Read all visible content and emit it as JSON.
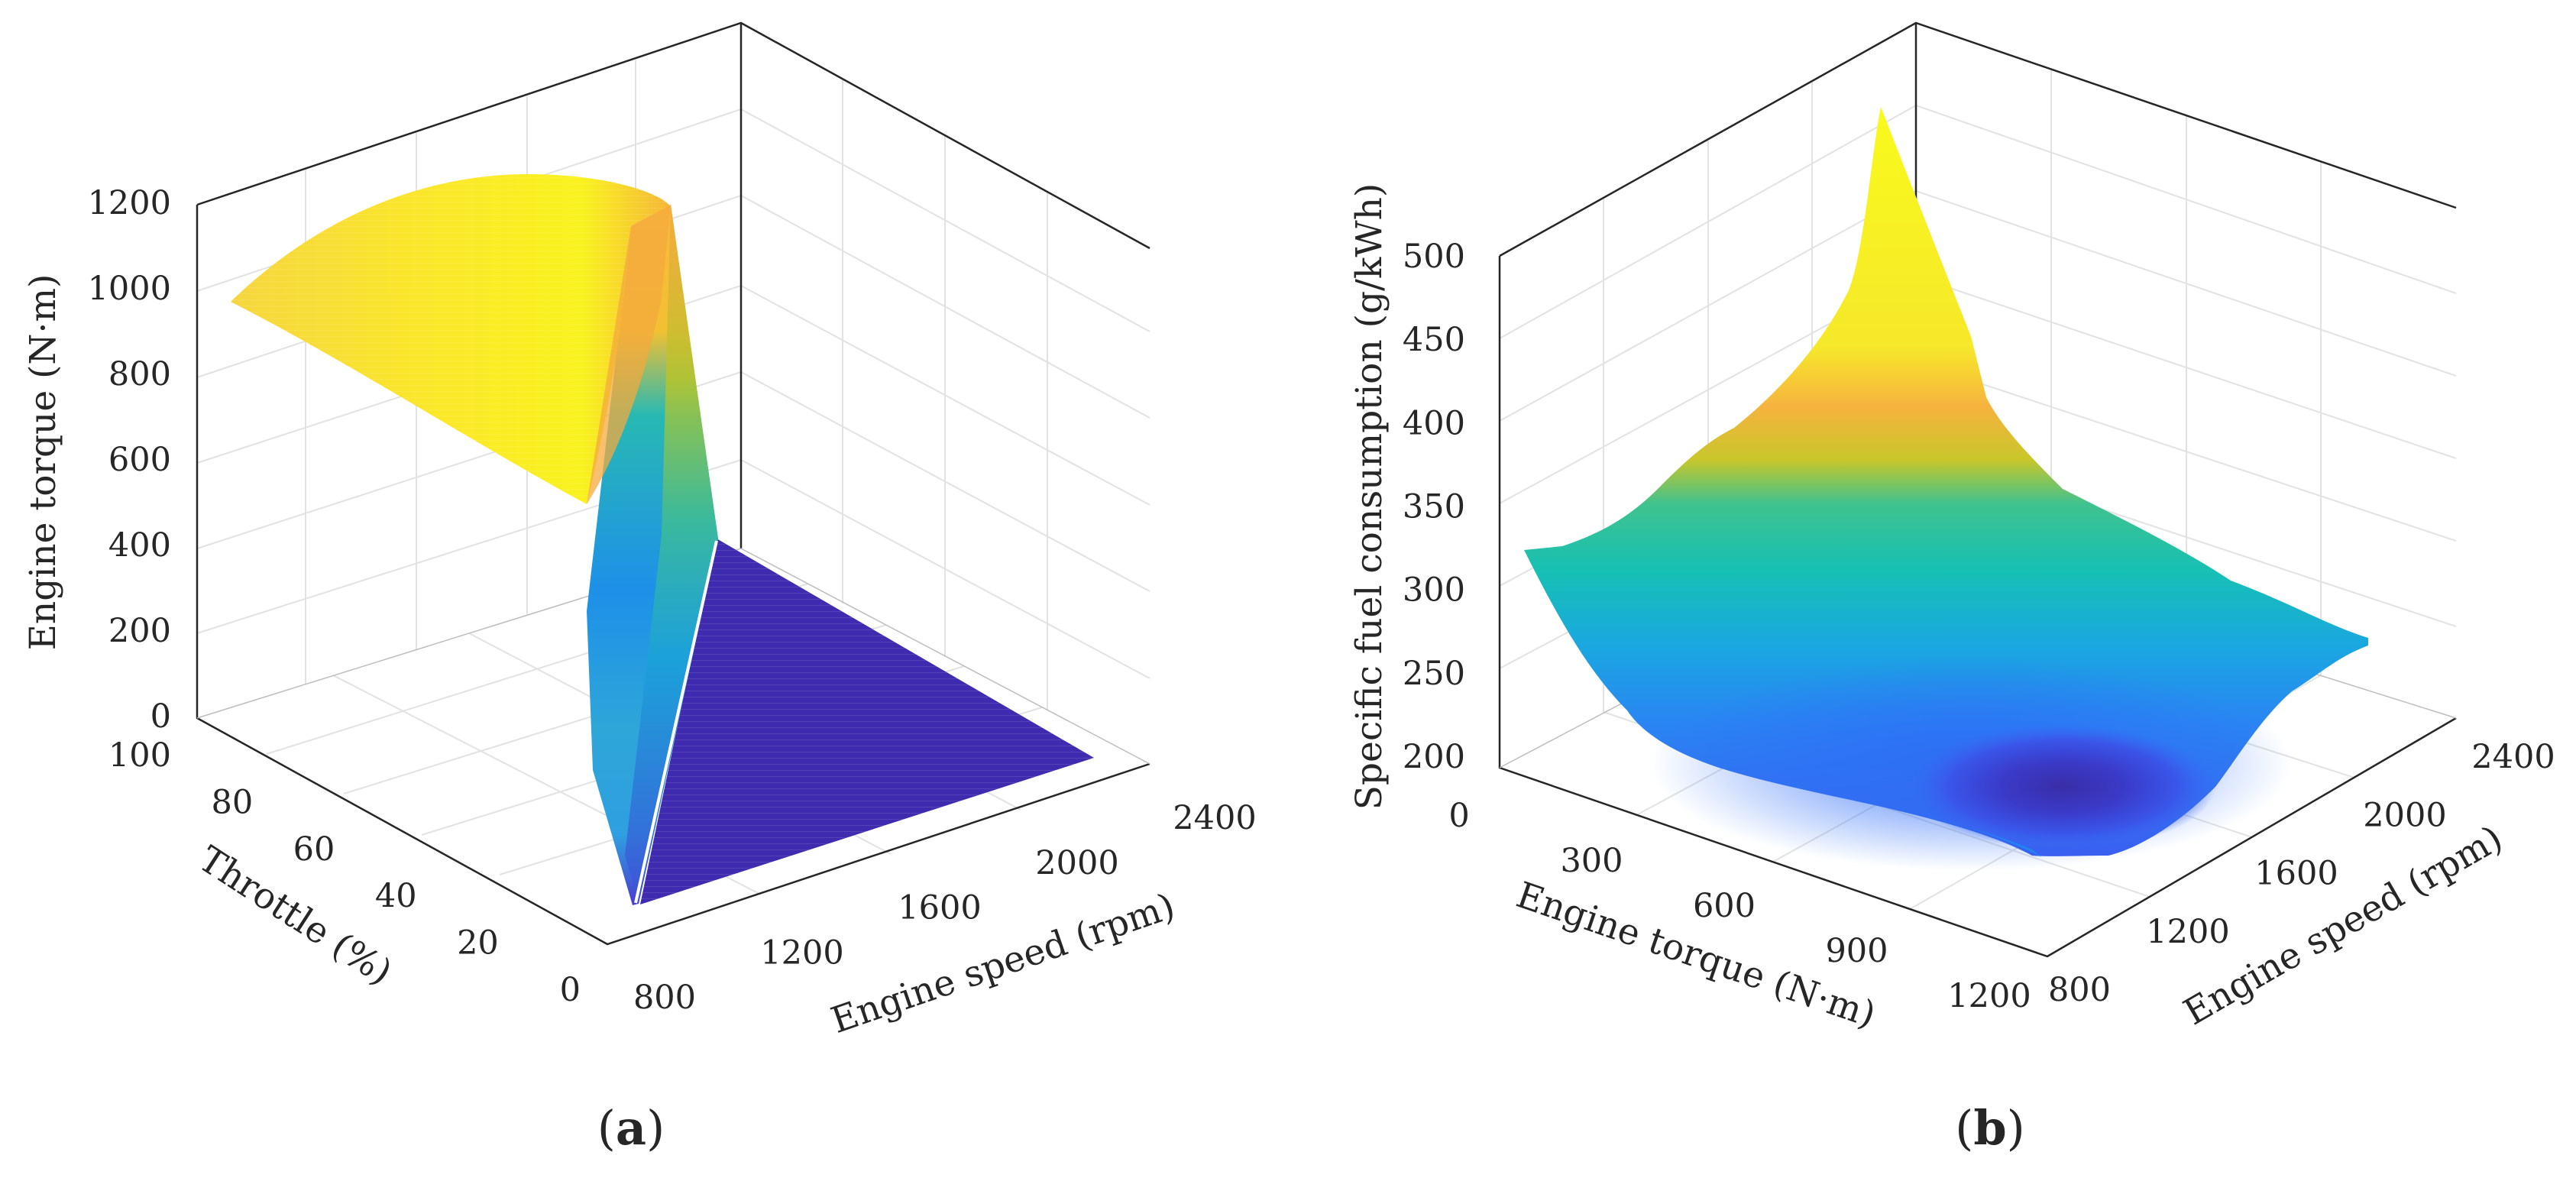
{
  "chart_data": [
    {
      "panel": "(a)",
      "type": "surface",
      "xlabel": "Engine speed (rpm)",
      "ylabel": "Throttle (%)",
      "zlabel": "Engine torque (N·m)",
      "x_ticks": [
        "800",
        "1200",
        "1600",
        "2000",
        "2400"
      ],
      "y_ticks": [
        "0",
        "20",
        "40",
        "60",
        "80",
        "100"
      ],
      "z_ticks": [
        "0",
        "200",
        "400",
        "600",
        "800",
        "1000",
        "1200"
      ],
      "xlim": [
        800,
        2400
      ],
      "ylim": [
        0,
        100
      ],
      "zlim": [
        0,
        1200
      ],
      "grid": true,
      "colormap": "parula",
      "colors": [
        "#3e26a8",
        "#2e87f7",
        "#13beb8",
        "#a8c230",
        "#f9ba38",
        "#f9fb15"
      ],
      "surface_points": [
        {
          "speed": 800,
          "throttle": 100,
          "torque": 960
        },
        {
          "speed": 1100,
          "throttle": 100,
          "torque": 1180
        },
        {
          "speed": 1400,
          "throttle": 100,
          "torque": 1200
        },
        {
          "speed": 2100,
          "throttle": 100,
          "torque": 1010
        },
        {
          "speed": 2100,
          "throttle": 90,
          "torque": 0
        },
        {
          "speed": 800,
          "throttle": 0,
          "torque": 0
        },
        {
          "speed": 2400,
          "throttle": 0,
          "torque": 0
        }
      ]
    },
    {
      "panel": "(b)",
      "type": "surface",
      "xlabel": "Engine torque (N·m)",
      "ylabel": "Engine speed (rpm)",
      "zlabel": "Specific fuel consumption (g/kWh)",
      "x_ticks": [
        "0",
        "300",
        "600",
        "900",
        "1200"
      ],
      "y_ticks": [
        "800",
        "1200",
        "1600",
        "2000",
        "2400"
      ],
      "z_ticks": [
        "200",
        "250",
        "300",
        "350",
        "400",
        "450",
        "500"
      ],
      "xlim": [
        0,
        1200
      ],
      "ylim": [
        800,
        2400
      ],
      "zlim": [
        180,
        500
      ],
      "grid": true,
      "colormap": "parula",
      "colors": [
        "#3e26a8",
        "#2e87f7",
        "#13beb8",
        "#a8c230",
        "#f9ba38",
        "#f9fb15"
      ],
      "surface_points": [
        {
          "torque": 0,
          "speed": 800,
          "sfc": 320
        },
        {
          "torque": 0,
          "speed": 2400,
          "sfc": 560
        },
        {
          "torque": 1200,
          "speed": 2400,
          "sfc": 270
        },
        {
          "torque": 1200,
          "speed": 800,
          "sfc": 200
        },
        {
          "torque": 900,
          "speed": 1200,
          "sfc": 195
        },
        {
          "torque": 300,
          "speed": 800,
          "sfc": 235
        }
      ]
    }
  ],
  "labels": {
    "a": "a",
    "b": "b"
  }
}
